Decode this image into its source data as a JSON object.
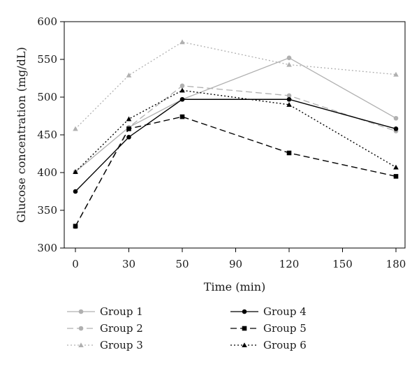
{
  "chart_data": {
    "type": "line",
    "xlabel": "Time (min)",
    "ylabel": "Glucose concentration (mg/dL)",
    "x_ticks": [
      "0",
      "30",
      "50",
      "90",
      "120",
      "150",
      "180"
    ],
    "y_ticks": [
      300,
      350,
      400,
      450,
      500,
      550,
      600
    ],
    "ylim": [
      300,
      600
    ],
    "grid": false,
    "legend_position": "bottom",
    "series": [
      {
        "name": "Group 1",
        "x": [
          "0",
          "30",
          "50",
          "120",
          "180"
        ],
        "values": [
          401,
          460,
          497,
          552,
          472
        ],
        "color": "#b0b0b0",
        "dash": "solid",
        "marker": "circle"
      },
      {
        "name": "Group 2",
        "x": [
          "0",
          "30",
          "50",
          "120",
          "180"
        ],
        "values": [
          328,
          460,
          515,
          502,
          455
        ],
        "color": "#b0b0b0",
        "dash": "dashed",
        "marker": "circle"
      },
      {
        "name": "Group 3",
        "x": [
          "0",
          "30",
          "50",
          "120",
          "180"
        ],
        "values": [
          458,
          529,
          573,
          543,
          530
        ],
        "color": "#b0b0b0",
        "dash": "dotted",
        "marker": "triangle"
      },
      {
        "name": "Group 4",
        "x": [
          "0",
          "30",
          "50",
          "120",
          "180"
        ],
        "values": [
          375,
          447,
          497,
          497,
          458
        ],
        "color": "#000000",
        "dash": "solid",
        "marker": "circle"
      },
      {
        "name": "Group 5",
        "x": [
          "0",
          "30",
          "50",
          "120",
          "180"
        ],
        "values": [
          329,
          458,
          474,
          426,
          395
        ],
        "color": "#000000",
        "dash": "dashed",
        "marker": "square"
      },
      {
        "name": "Group 6",
        "x": [
          "0",
          "30",
          "50",
          "120",
          "180"
        ],
        "values": [
          401,
          471,
          509,
          490,
          407
        ],
        "color": "#000000",
        "dash": "dotted",
        "marker": "triangle"
      }
    ]
  }
}
